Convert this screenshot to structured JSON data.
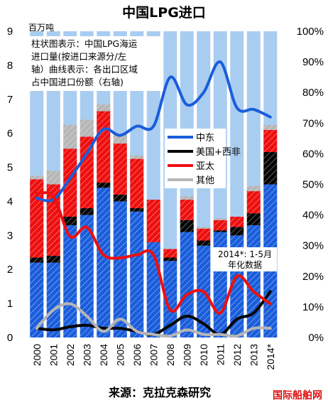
{
  "chart_data": {
    "type": "bar",
    "title": "中国LPG进口",
    "unit_left": "百万吨",
    "description_lines": [
      "柱状图表示：中国LPG海运",
      "进口量(按进口来源分/左",
      "轴）曲线表示：各出口区域",
      "占中国进口份额（右轴)"
    ],
    "categories": [
      "2000",
      "2001",
      "2002",
      "2003",
      "2004",
      "2005",
      "2006",
      "2007",
      "2008",
      "2009",
      "2010",
      "2011",
      "2012",
      "2013",
      "2014*"
    ],
    "ylim": [
      0,
      9
    ],
    "y2lim": [
      0,
      100
    ],
    "yticks": [
      "0",
      "1",
      "2",
      "3",
      "4",
      "5",
      "6",
      "7",
      "8",
      "9"
    ],
    "y2ticks": [
      "0%",
      "10%",
      "20%",
      "30%",
      "40%",
      "50%",
      "60%",
      "70%",
      "80%",
      "90%",
      "100%"
    ],
    "grid": false,
    "legend_position": "center",
    "bar_series": [
      {
        "name": "中东",
        "color": "#1a5ddb",
        "values": [
          2.2,
          2.2,
          3.3,
          3.6,
          4.4,
          4.0,
          3.7,
          2.8,
          2.25,
          3.1,
          2.7,
          3.1,
          3.0,
          3.3,
          4.5
        ]
      },
      {
        "name": "美国+西非",
        "color": "#050505",
        "values": [
          0.15,
          0.2,
          0.25,
          0.2,
          0.15,
          0.2,
          0.1,
          0.0,
          0.1,
          0.35,
          0.15,
          0.05,
          0.25,
          0.35,
          0.95
        ]
      },
      {
        "name": "亚太",
        "color": "#ee0f0f",
        "values": [
          2.3,
          2.1,
          2.0,
          2.1,
          2.1,
          1.5,
          1.45,
          1.25,
          0.25,
          0.6,
          0.35,
          0.3,
          0.3,
          0.65,
          0.65
        ]
      },
      {
        "name": "其他",
        "color": "#b6b6b6",
        "values": [
          0.1,
          0.4,
          0.7,
          0.5,
          0.2,
          0.3,
          0.1,
          0.0,
          0.0,
          0.1,
          0.05,
          0.05,
          0.0,
          0.15,
          0.15
        ]
      }
    ],
    "line_series": [
      {
        "name": "中东",
        "color": "#1a5ddb",
        "values": [
          45.5,
          45,
          52,
          60,
          68,
          66,
          69,
          69,
          85,
          76,
          80,
          90,
          75,
          74.5,
          72
        ]
      },
      {
        "name": "美国+西非",
        "color": "#050505",
        "values": [
          3,
          2.5,
          3.5,
          4,
          3,
          3,
          2,
          1,
          4,
          7,
          4.5,
          1,
          6,
          8,
          15
        ]
      },
      {
        "name": "亚太",
        "color": "#ee0f0f",
        "values": [
          47,
          46,
          33,
          36,
          27,
          26,
          27,
          27,
          9,
          14,
          15,
          8,
          20,
          15,
          11
        ]
      },
      {
        "name": "其他",
        "color": "#b6b6b6",
        "values": [
          3,
          9,
          11,
          7,
          2,
          6,
          2,
          1,
          0.5,
          2.5,
          1,
          1,
          0.5,
          3,
          3
        ]
      }
    ],
    "annotation_lines": [
      "2014*: 1-5月",
      "年化数据"
    ],
    "source": "来源：克拉克森研究"
  },
  "watermark": "国际船舶网",
  "colors": {
    "background_bar": "#a9cdf1",
    "hatch": "#ffffff"
  }
}
